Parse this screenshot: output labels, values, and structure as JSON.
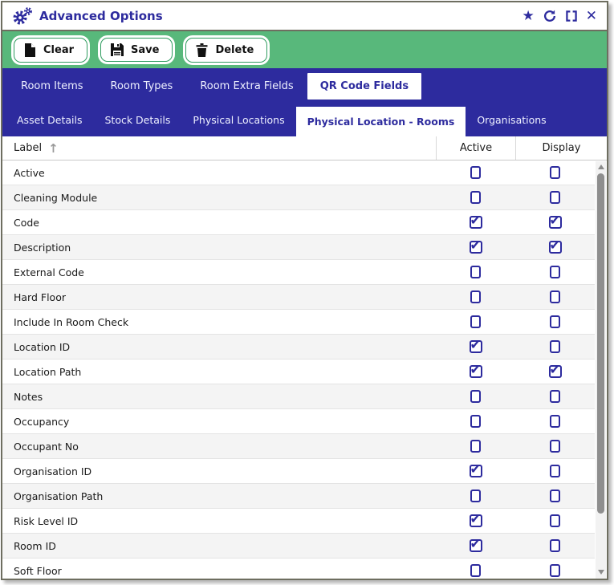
{
  "window": {
    "title": "Advanced Options",
    "icons": {
      "star": "★",
      "close": "✕"
    }
  },
  "toolbar": {
    "buttons": [
      {
        "label": "Clear",
        "icon": "clear-document-icon"
      },
      {
        "label": "Save",
        "icon": "save-floppy-icon"
      },
      {
        "label": "Delete",
        "icon": "delete-trash-icon"
      }
    ]
  },
  "nav": {
    "row1": [
      {
        "label": "Room Items",
        "selected": false
      },
      {
        "label": "Room Types",
        "selected": false
      },
      {
        "label": "Room Extra Fields",
        "selected": false
      },
      {
        "label": "QR Code Fields",
        "selected": true
      }
    ],
    "row2": [
      {
        "label": "Asset Details",
        "selected": false
      },
      {
        "label": "Stock Details",
        "selected": false
      },
      {
        "label": "Physical Locations",
        "selected": false
      },
      {
        "label": "Physical Location - Rooms",
        "selected": true
      },
      {
        "label": "Organisations",
        "selected": false
      }
    ]
  },
  "table": {
    "columns": {
      "label": "Label",
      "active": "Active",
      "display": "Display"
    },
    "sort": {
      "column": "Label",
      "direction": "ascending",
      "icon": "↑"
    },
    "rows": [
      {
        "label": "Active",
        "active": false,
        "display": false
      },
      {
        "label": "Cleaning Module",
        "active": false,
        "display": false
      },
      {
        "label": "Code",
        "active": true,
        "display": true
      },
      {
        "label": "Description",
        "active": true,
        "display": true
      },
      {
        "label": "External Code",
        "active": false,
        "display": false
      },
      {
        "label": "Hard Floor",
        "active": false,
        "display": false
      },
      {
        "label": "Include In Room Check",
        "active": false,
        "display": false
      },
      {
        "label": "Location ID",
        "active": true,
        "display": false
      },
      {
        "label": "Location Path",
        "active": true,
        "display": true
      },
      {
        "label": "Notes",
        "active": false,
        "display": false
      },
      {
        "label": "Occupancy",
        "active": false,
        "display": false
      },
      {
        "label": "Occupant No",
        "active": false,
        "display": false
      },
      {
        "label": "Organisation ID",
        "active": true,
        "display": false
      },
      {
        "label": "Organisation Path",
        "active": false,
        "display": false
      },
      {
        "label": "Risk Level ID",
        "active": true,
        "display": false
      },
      {
        "label": "Room ID",
        "active": true,
        "display": false
      },
      {
        "label": "Soft Floor",
        "active": false,
        "display": false
      }
    ]
  },
  "colors": {
    "accent_indigo": "#2d2b9e",
    "accent_green": "#58b87b",
    "row_alt": "#f4f4f4",
    "frame_border": "#6e6e60"
  }
}
